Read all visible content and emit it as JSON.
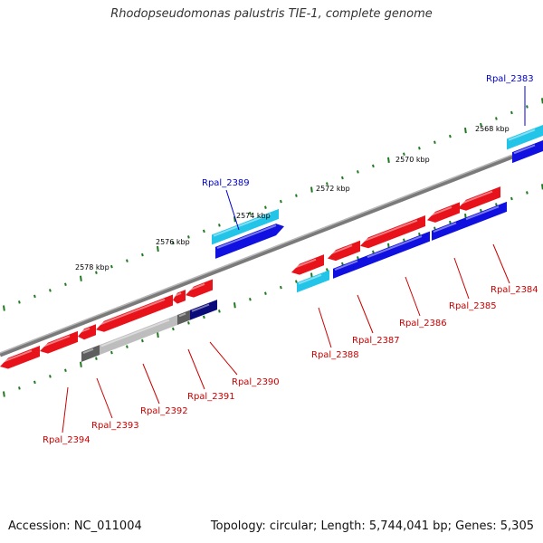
{
  "title": "Rhodopseudomonas palustris TIE-1, complete genome",
  "footer": {
    "accession": "Accession: NC_011004",
    "summary": "Topology: circular; Length: 5,744,041 bp; Genes: 5,305"
  },
  "colors": {
    "background": "#ffffff",
    "backbone": "#7a7a7a",
    "tick": "#1f7a1f",
    "label_red": "#cc0000",
    "label_blue": "#0000cc",
    "gene_red": "#e8121b",
    "gene_blue": "#1010e0",
    "gene_cyan": "#22c4e8",
    "gene_navy": "#0a0a7a",
    "gene_gray": "#bdbdbd",
    "gene_darkgray": "#5e5e5e"
  },
  "scale_labels": [
    "2568 kbp",
    "2570 kbp",
    "2572 kbp",
    "2574 kbp",
    "2576 kbp",
    "2578 kbp"
  ],
  "gene_labels": [
    {
      "name": "Rpal_2383",
      "color": "blue"
    },
    {
      "name": "Rpal_2384",
      "color": "red"
    },
    {
      "name": "Rpal_2385",
      "color": "red"
    },
    {
      "name": "Rpal_2386",
      "color": "red"
    },
    {
      "name": "Rpal_2387",
      "color": "red"
    },
    {
      "name": "Rpal_2388",
      "color": "red"
    },
    {
      "name": "Rpal_2389",
      "color": "blue"
    },
    {
      "name": "Rpal_2390",
      "color": "red"
    },
    {
      "name": "Rpal_2391",
      "color": "red"
    },
    {
      "name": "Rpal_2392",
      "color": "red"
    },
    {
      "name": "Rpal_2393",
      "color": "red"
    },
    {
      "name": "Rpal_2394",
      "color": "red"
    }
  ]
}
